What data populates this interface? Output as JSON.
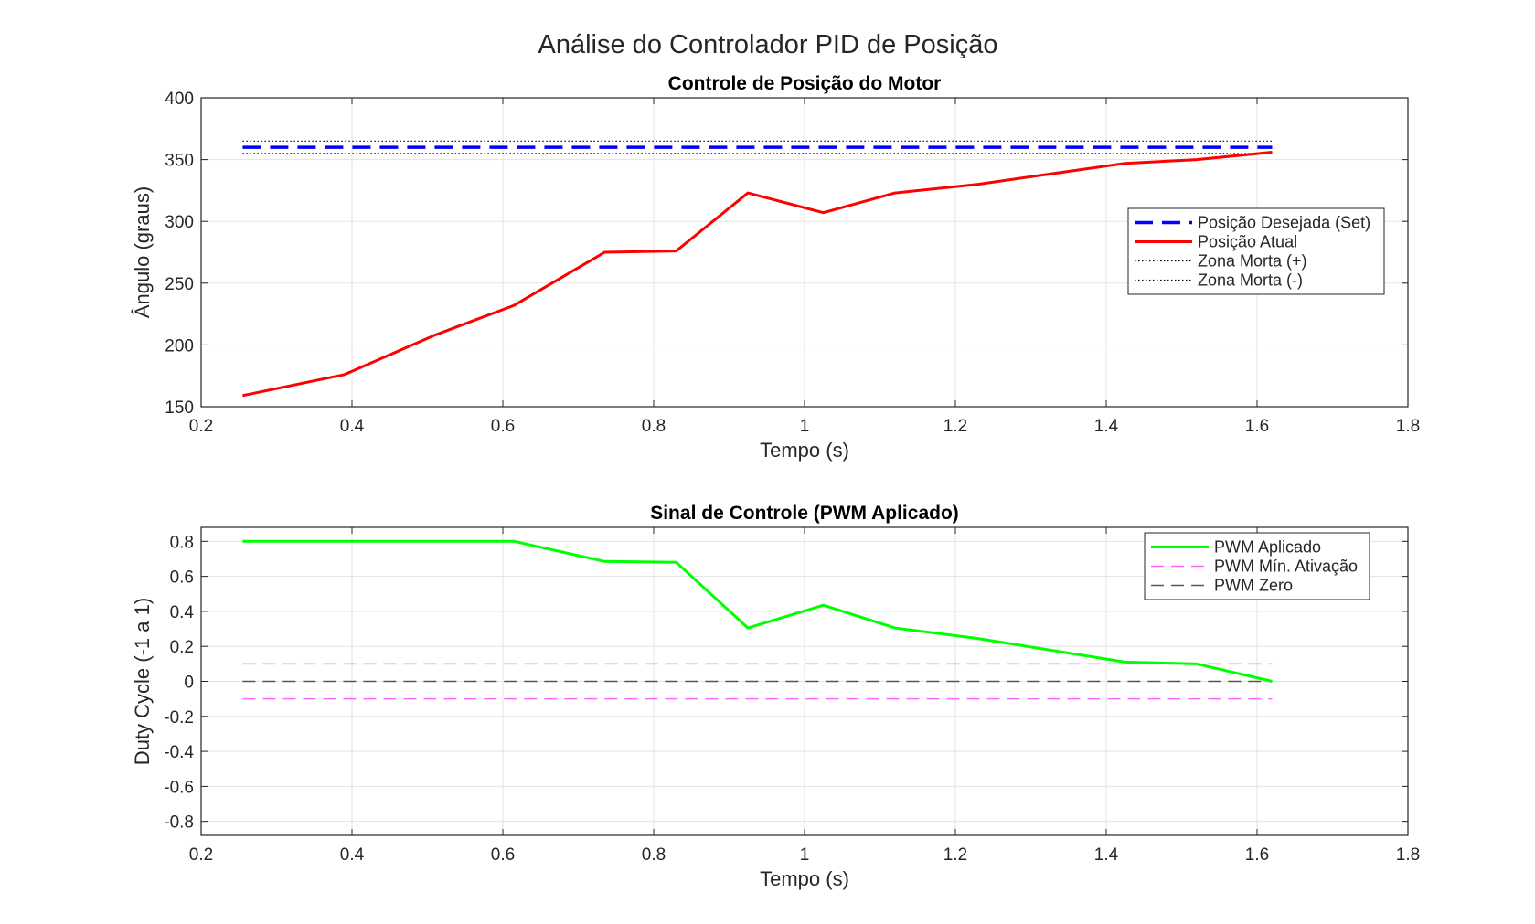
{
  "figure": {
    "title": "Análise do Controlador PID de Posição"
  },
  "chart_data": [
    {
      "type": "line",
      "title": "Controle de Posição do Motor",
      "xlabel": "Tempo (s)",
      "ylabel": "Ângulo (graus)",
      "xlim": [
        0.2,
        1.8
      ],
      "ylim": [
        150,
        400
      ],
      "xticks": [
        "0.2",
        "0.4",
        "0.6",
        "0.8",
        "1",
        "1.2",
        "1.4",
        "1.6",
        "1.8"
      ],
      "yticks": [
        "150",
        "200",
        "250",
        "300",
        "350",
        "400"
      ],
      "grid": true,
      "legend_position": "right",
      "series": [
        {
          "name": "Posição Desejada (Set)",
          "color": "#0000ff",
          "style": "dashed-thick",
          "x": [
            0.255,
            1.62
          ],
          "y": [
            360,
            360
          ]
        },
        {
          "name": "Posição Atual",
          "color": "#ff0000",
          "style": "solid",
          "x": [
            0.255,
            0.39,
            0.51,
            0.615,
            0.735,
            0.83,
            0.925,
            1.025,
            1.12,
            1.23,
            1.425,
            1.52,
            1.62
          ],
          "y": [
            159,
            176,
            208,
            232,
            275,
            276,
            323,
            307,
            323,
            330,
            347,
            350,
            356
          ]
        },
        {
          "name": "Zona Morta (+)",
          "color": "#000000",
          "style": "dotted",
          "x": [
            0.255,
            1.62
          ],
          "y": [
            365,
            365
          ]
        },
        {
          "name": "Zona Morta (-)",
          "color": "#000000",
          "style": "dotted",
          "x": [
            0.255,
            1.62
          ],
          "y": [
            355,
            355
          ]
        }
      ]
    },
    {
      "type": "line",
      "title": "Sinal de Controle (PWM Aplicado)",
      "xlabel": "Tempo (s)",
      "ylabel": "Duty Cycle (-1 a 1)",
      "xlim": [
        0.2,
        1.8
      ],
      "ylim": [
        -0.88,
        0.88
      ],
      "xticks": [
        "0.2",
        "0.4",
        "0.6",
        "0.8",
        "1",
        "1.2",
        "1.4",
        "1.6",
        "1.8"
      ],
      "yticks": [
        "0.8",
        "0.6",
        "0.4",
        "0.2",
        "0",
        "-0.2",
        "-0.4",
        "-0.6",
        "-0.8"
      ],
      "grid": true,
      "legend_position": "top-right",
      "series": [
        {
          "name": "PWM Aplicado",
          "color": "#00ff00",
          "style": "solid",
          "x": [
            0.255,
            0.39,
            0.51,
            0.615,
            0.735,
            0.83,
            0.925,
            1.025,
            1.12,
            1.23,
            1.425,
            1.52,
            1.62
          ],
          "y": [
            0.8,
            0.8,
            0.8,
            0.8,
            0.685,
            0.68,
            0.305,
            0.435,
            0.305,
            0.245,
            0.11,
            0.1,
            0.0
          ]
        },
        {
          "name": "PWM Mín. Ativação",
          "color": "#ff66ff",
          "style": "dashed",
          "x": [
            0.255,
            1.62
          ],
          "y": [
            0.1,
            0.1
          ],
          "mirror_y": [
            -0.1,
            -0.1
          ]
        },
        {
          "name": "PWM Zero",
          "color": "#555555",
          "style": "dashed",
          "x": [
            0.255,
            1.62
          ],
          "y": [
            0,
            0
          ]
        }
      ]
    }
  ]
}
